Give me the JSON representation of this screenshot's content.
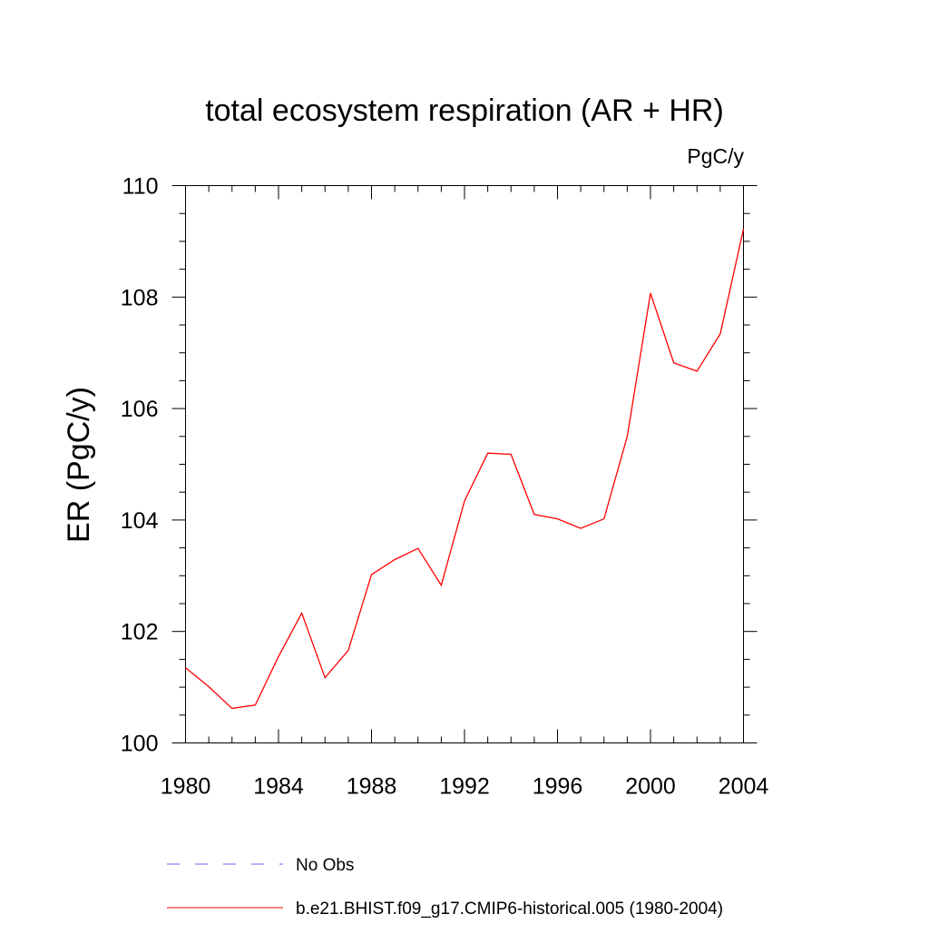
{
  "chart_data": {
    "type": "line",
    "title": "total ecosystem respiration (AR + HR)",
    "units_label": "PgC/y",
    "xlabel": "",
    "ylabel": "ER  (PgC/y)",
    "xlim": [
      1980,
      2004
    ],
    "ylim": [
      100,
      110
    ],
    "x_major_ticks": [
      1980,
      1984,
      1988,
      1992,
      1996,
      2000,
      2004
    ],
    "x_minor_step": 1,
    "y_major_ticks": [
      100,
      102,
      104,
      106,
      108,
      110
    ],
    "y_minor_step": 0.5,
    "grid": false,
    "legend_placement": "bottom",
    "series": [
      {
        "name": "b.e21.BHIST.f09_g17.CMIP6-historical.005 (1980-2004)",
        "color": "#ff0000",
        "style": "solid",
        "x": [
          1980,
          1981,
          1982,
          1983,
          1984,
          1985,
          1986,
          1987,
          1988,
          1989,
          1990,
          1991,
          1992,
          1993,
          1994,
          1995,
          1996,
          1997,
          1998,
          1999,
          2000,
          2001,
          2002,
          2003,
          2004
        ],
        "values": [
          101.35,
          101.01,
          100.62,
          100.68,
          101.55,
          102.33,
          101.17,
          101.66,
          103.02,
          103.29,
          103.49,
          102.83,
          104.34,
          105.2,
          105.18,
          104.1,
          104.02,
          103.85,
          104.02,
          105.5,
          108.07,
          106.82,
          106.67,
          107.34,
          109.22
        ]
      },
      {
        "name": "No Obs",
        "color": "#6666ee",
        "style": "dashed",
        "x": [],
        "values": []
      }
    ]
  }
}
